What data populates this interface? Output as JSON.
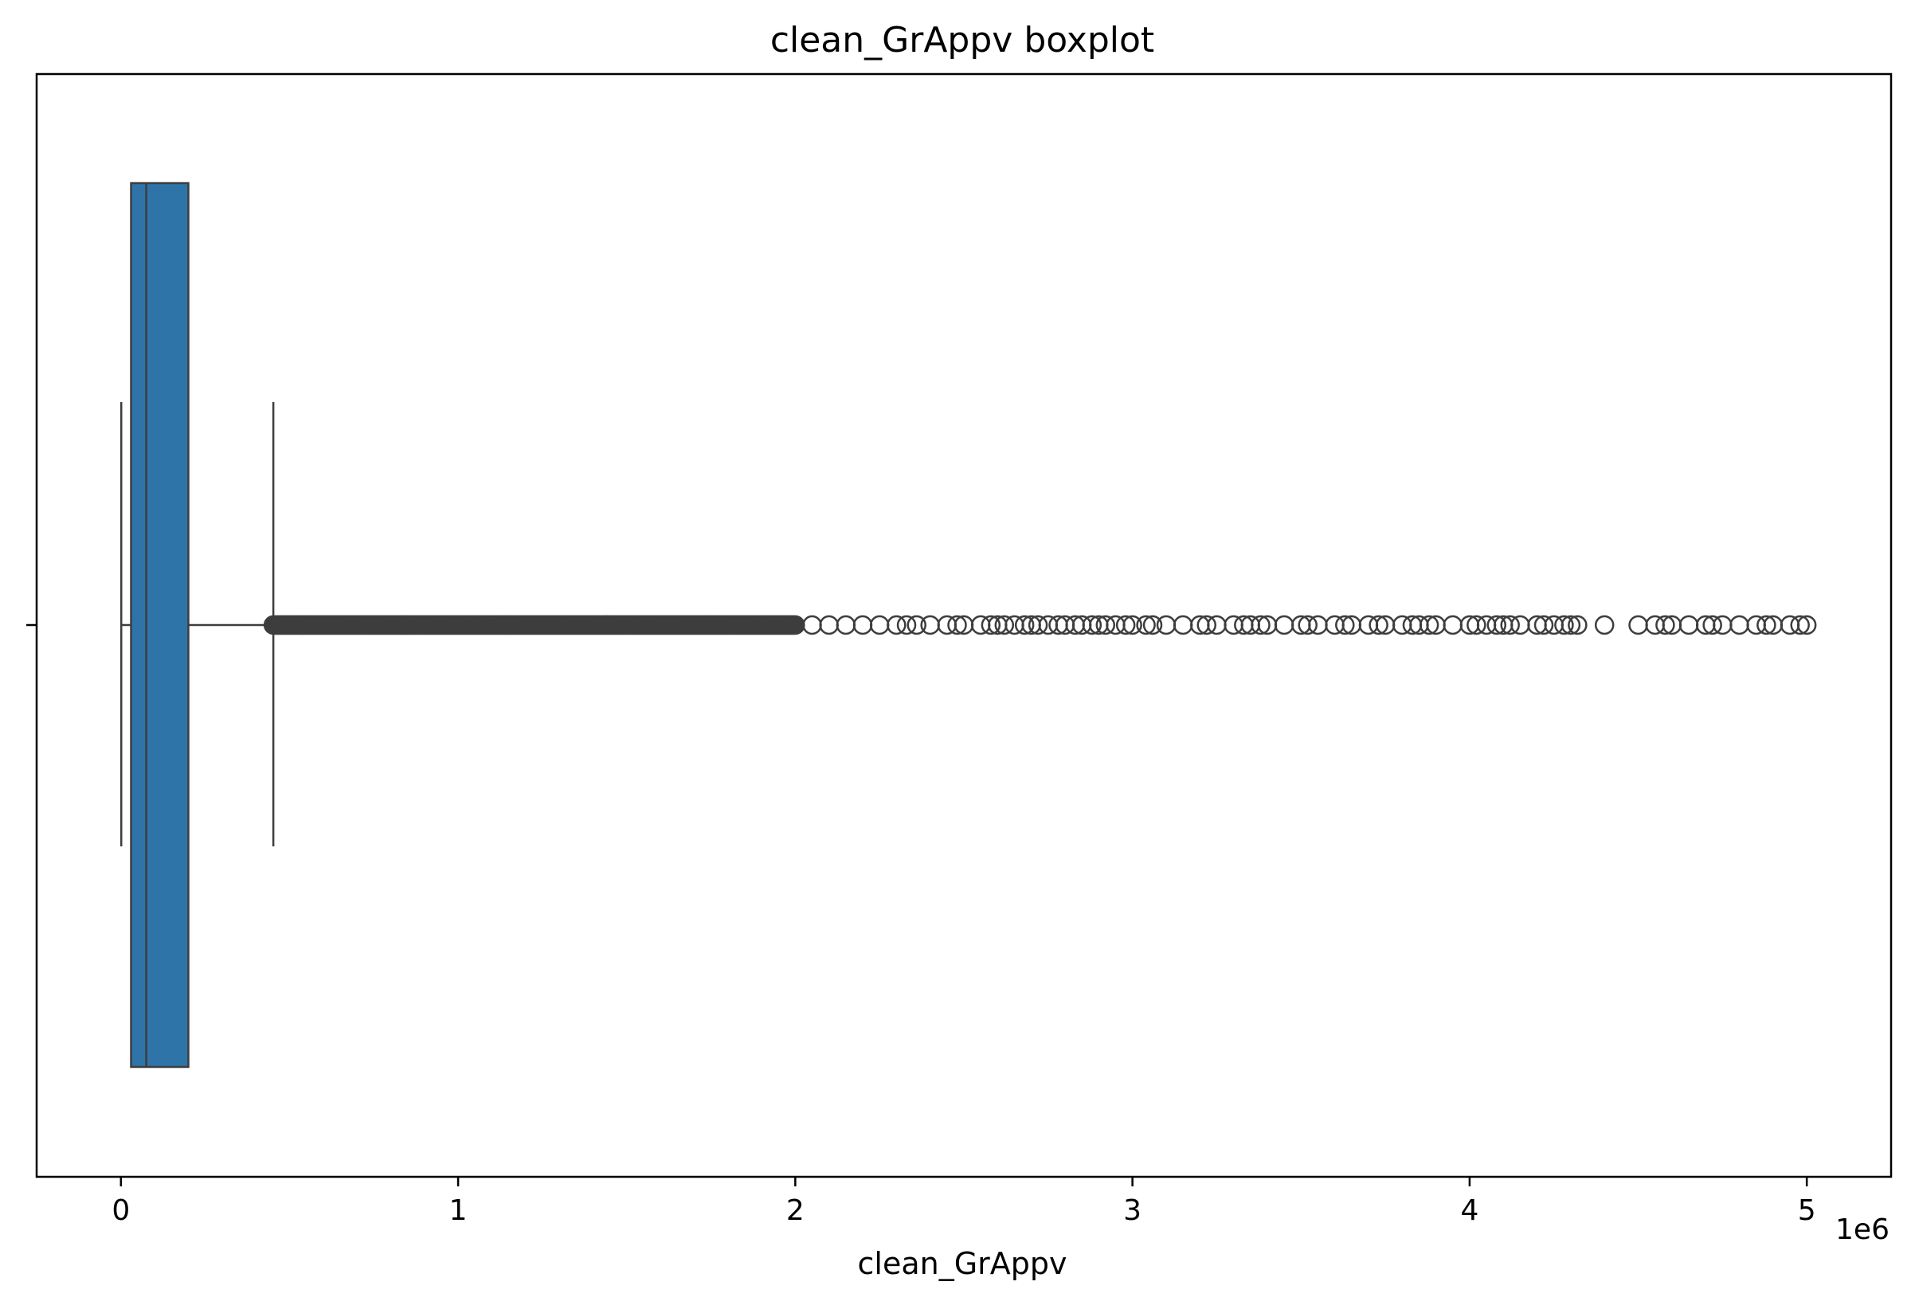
{
  "chart_data": {
    "type": "boxplot",
    "title": "clean_GrAppv boxplot",
    "xlabel": "clean_GrAppv",
    "ylabel": "",
    "x_offset_label": "1e6",
    "xlim": [
      -250000,
      5250000
    ],
    "x_ticks": [
      0,
      1000000,
      2000000,
      3000000,
      4000000,
      5000000
    ],
    "x_tick_labels": [
      "0",
      "1",
      "2",
      "3",
      "4",
      "5"
    ],
    "orientation": "horizontal",
    "box": {
      "whisker_low": 1000,
      "q1": 30000,
      "median": 75000,
      "q3": 200000,
      "whisker_high": 452000
    },
    "outlier_dense_range": [
      452000,
      2000000
    ],
    "outliers": [
      2050000,
      2100000,
      2150000,
      2200000,
      2250000,
      2300000,
      2330000,
      2360000,
      2400000,
      2450000,
      2480000,
      2500000,
      2550000,
      2580000,
      2600000,
      2620000,
      2650000,
      2680000,
      2700000,
      2720000,
      2750000,
      2780000,
      2800000,
      2830000,
      2850000,
      2880000,
      2900000,
      2920000,
      2950000,
      2980000,
      3000000,
      3040000,
      3060000,
      3100000,
      3150000,
      3200000,
      3220000,
      3250000,
      3300000,
      3330000,
      3350000,
      3380000,
      3400000,
      3450000,
      3500000,
      3520000,
      3550000,
      3600000,
      3630000,
      3650000,
      3700000,
      3730000,
      3750000,
      3800000,
      3830000,
      3850000,
      3880000,
      3900000,
      3950000,
      4000000,
      4020000,
      4050000,
      4080000,
      4100000,
      4120000,
      4150000,
      4200000,
      4220000,
      4250000,
      4280000,
      4300000,
      4320000,
      4400000,
      4500000,
      4550000,
      4580000,
      4600000,
      4650000,
      4700000,
      4720000,
      4750000,
      4800000,
      4850000,
      4880000,
      4900000,
      4950000,
      4980000,
      5000000
    ],
    "colors": {
      "box_fill": "#2e74a9",
      "line": "#3d3d3d"
    },
    "grid": false
  }
}
